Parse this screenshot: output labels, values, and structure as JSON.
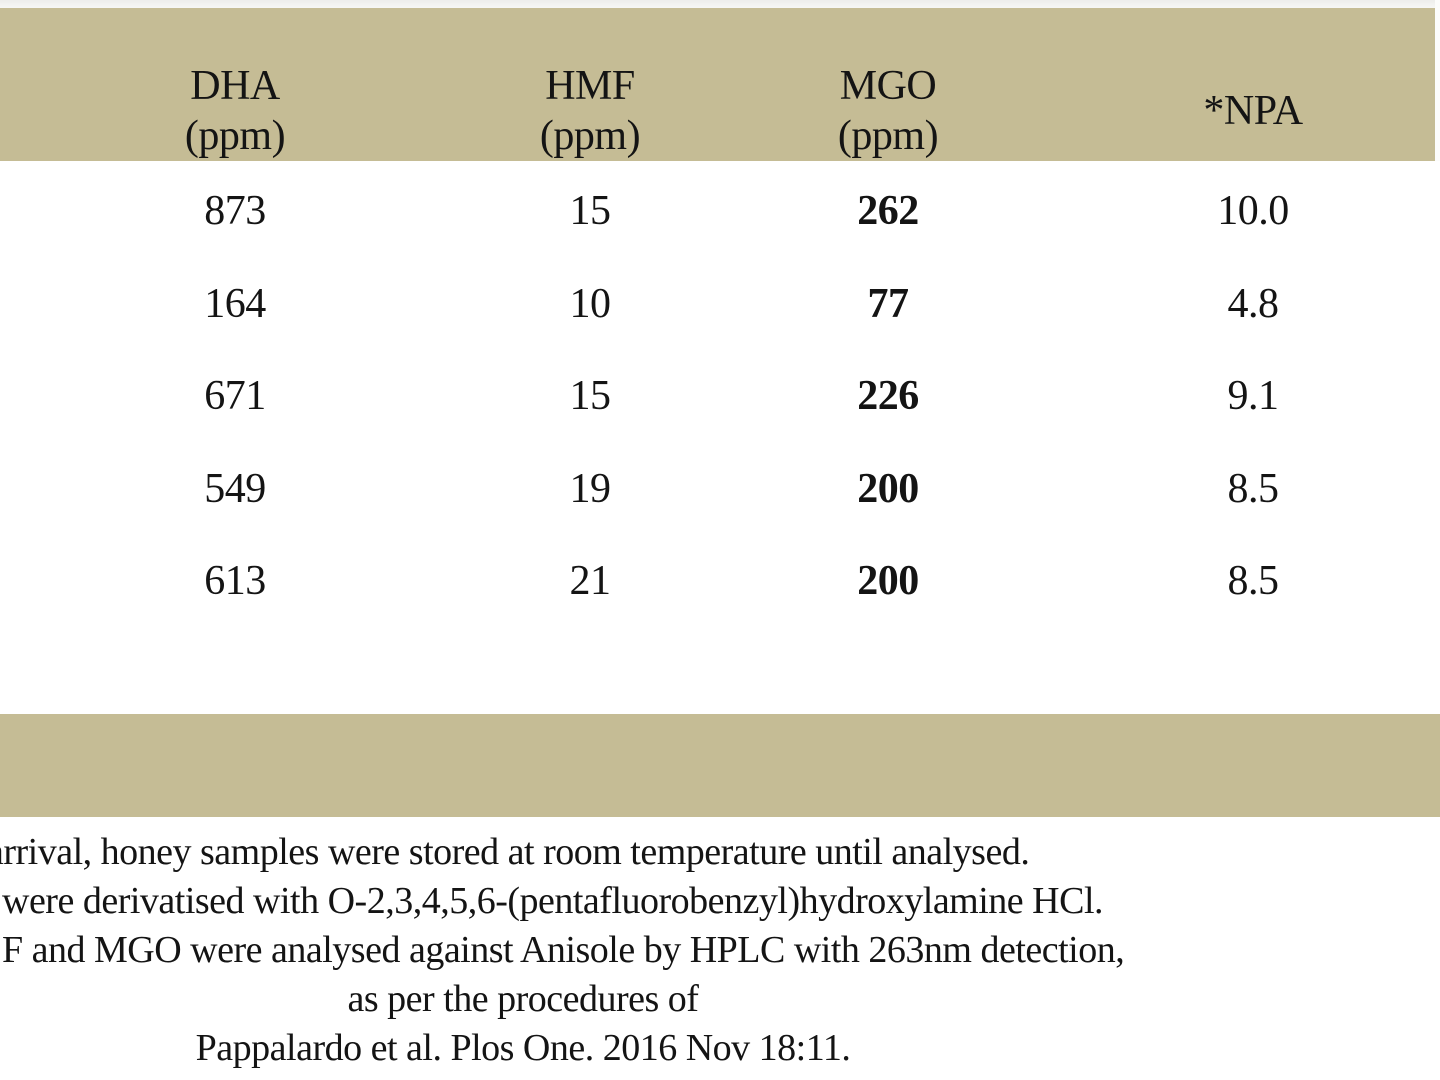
{
  "theme": {
    "band_color": "#c5bc95",
    "page_background": "#ffffff",
    "text_color": "#141414"
  },
  "table": {
    "columns": [
      {
        "label": "DHA",
        "sublabel": "(ppm)"
      },
      {
        "label": "HMF",
        "sublabel": "(ppm)"
      },
      {
        "label": "MGO",
        "sublabel": "(ppm)"
      },
      {
        "label": "*NPA",
        "sublabel": ""
      }
    ],
    "rows": [
      {
        "dha": "873",
        "hmf": "15",
        "mgo": "262",
        "npa": "10.0"
      },
      {
        "dha": "164",
        "hmf": "10",
        "mgo": "77",
        "npa": "4.8"
      },
      {
        "dha": "671",
        "hmf": "15",
        "mgo": "226",
        "npa": "9.1"
      },
      {
        "dha": "549",
        "hmf": "19",
        "mgo": "200",
        "npa": "8.5"
      },
      {
        "dha": "613",
        "hmf": "21",
        "mgo": "200",
        "npa": "8.5"
      }
    ]
  },
  "footnotes": {
    "line1": "arrival, honey samples were stored at room temperature until analysed.",
    "line2": "were derivatised with O-2,3,4,5,6-(pentafluorobenzyl)hydroxylamine HCl.",
    "line3": "F and MGO were analysed against Anisole by HPLC with 263nm detection,",
    "line4": "as per the procedures of",
    "line5": "Pappalardo et al. Plos One. 2016 Nov 18:11."
  }
}
